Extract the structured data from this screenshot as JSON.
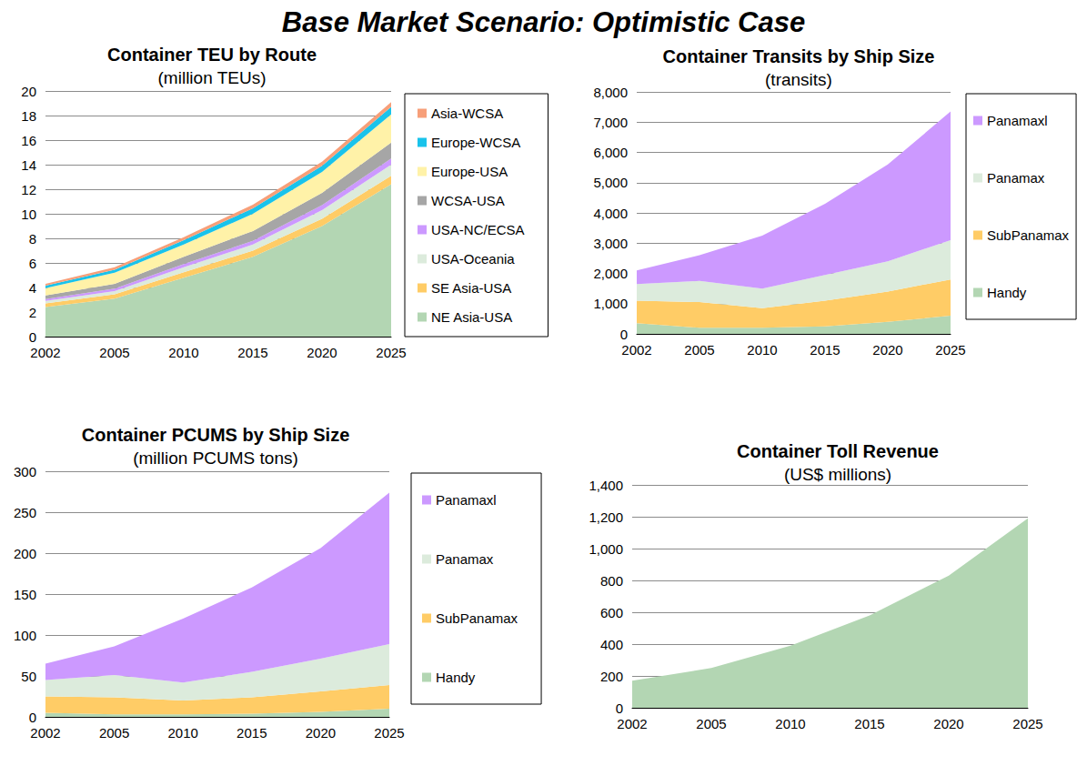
{
  "title": "Base Market Scenario: Optimistic Case",
  "chart_data": [
    {
      "type": "area",
      "title": "Container TEU by Route",
      "subtitle": "(million TEUs)",
      "categories": [
        2002,
        2005,
        2010,
        2015,
        2020,
        2025
      ],
      "stacked": true,
      "grid": true,
      "legend": "right",
      "ylim": [
        0,
        20
      ],
      "yticks": [
        0,
        2,
        4,
        6,
        8,
        10,
        12,
        14,
        16,
        18,
        20
      ],
      "series": [
        {
          "name": "NE Asia-USA",
          "color": "#B3D6B3",
          "values": [
            2.4,
            3.1,
            4.8,
            6.5,
            9.0,
            12.4
          ]
        },
        {
          "name": "SE Asia-USA",
          "color": "#FFCC66",
          "values": [
            0.3,
            0.35,
            0.45,
            0.5,
            0.6,
            0.7
          ]
        },
        {
          "name": "USA-Oceania",
          "color": "#DCEBDC",
          "values": [
            0.2,
            0.25,
            0.4,
            0.5,
            0.7,
            0.9
          ]
        },
        {
          "name": "USA-NC/ECSA",
          "color": "#CC99FF",
          "values": [
            0.15,
            0.2,
            0.25,
            0.3,
            0.4,
            0.5
          ]
        },
        {
          "name": "WCSA-USA",
          "color": "#A6A6A6",
          "values": [
            0.3,
            0.4,
            0.6,
            0.8,
            1.0,
            1.3
          ]
        },
        {
          "name": "Europe-USA",
          "color": "#FFF2A8",
          "values": [
            0.6,
            0.9,
            1.0,
            1.4,
            1.7,
            2.3
          ]
        },
        {
          "name": "Europe-WCSA",
          "color": "#19C3EB",
          "values": [
            0.2,
            0.25,
            0.35,
            0.45,
            0.5,
            0.6
          ]
        },
        {
          "name": "Asia-WCSA",
          "color": "#F79F79",
          "values": [
            0.15,
            0.2,
            0.25,
            0.3,
            0.35,
            0.4
          ]
        }
      ]
    },
    {
      "type": "area",
      "title": "Container Transits by Ship Size",
      "subtitle": "(transits)",
      "categories": [
        2002,
        2005,
        2010,
        2015,
        2020,
        2025
      ],
      "stacked": true,
      "grid": true,
      "legend": "right",
      "ylim": [
        0,
        8000
      ],
      "yticks": [
        0,
        {
          "value": 1000,
          "label": "1,000"
        },
        {
          "value": 2000,
          "label": "2,000"
        },
        {
          "value": 3000,
          "label": "3,000"
        },
        {
          "value": 4000,
          "label": "4,000"
        },
        {
          "value": 5000,
          "label": "5,000"
        },
        {
          "value": 6000,
          "label": "6,000"
        },
        {
          "value": 7000,
          "label": "7,000"
        },
        {
          "value": 8000,
          "label": "8,000"
        }
      ],
      "series": [
        {
          "name": "Handy",
          "color": "#B3D6B3",
          "values": [
            350,
            200,
            200,
            250,
            400,
            600
          ]
        },
        {
          "name": "SubPanamax",
          "color": "#FFCC66",
          "values": [
            750,
            850,
            650,
            850,
            1000,
            1200
          ]
        },
        {
          "name": "Panamax",
          "color": "#DCEBDC",
          "values": [
            550,
            700,
            650,
            850,
            1000,
            1300
          ]
        },
        {
          "name": "Panamaxl",
          "color": "#CC99FF",
          "values": [
            450,
            850,
            1750,
            2350,
            3200,
            4250
          ]
        }
      ]
    },
    {
      "type": "area",
      "title": "Container PCUMS by Ship Size",
      "subtitle": "(million PCUMS tons)",
      "categories": [
        2002,
        2005,
        2010,
        2015,
        2020,
        2025
      ],
      "stacked": true,
      "grid": true,
      "legend": "right",
      "ylim": [
        0,
        300
      ],
      "yticks": [
        0,
        50,
        100,
        150,
        200,
        250,
        300
      ],
      "series": [
        {
          "name": "Handy",
          "color": "#B3D6B3",
          "values": [
            5,
            3,
            3,
            4,
            6,
            10
          ]
        },
        {
          "name": "SubPanamax",
          "color": "#FFCC66",
          "values": [
            20,
            21,
            17,
            20,
            25,
            29
          ]
        },
        {
          "name": "Panamax",
          "color": "#DCEBDC",
          "values": [
            20,
            27,
            22,
            31,
            40,
            50
          ]
        },
        {
          "name": "Panamaxl",
          "color": "#CC99FF",
          "values": [
            20,
            35,
            78,
            103,
            135,
            185
          ]
        }
      ]
    },
    {
      "type": "area",
      "title": "Container Toll Revenue",
      "subtitle": "(US$ millions)",
      "categories": [
        2002,
        2005,
        2010,
        2015,
        2020,
        2025
      ],
      "grid": true,
      "ylim": [
        0,
        1400
      ],
      "yticks": [
        0,
        200,
        400,
        600,
        800,
        {
          "value": 1000,
          "label": "1,000"
        },
        {
          "value": 1200,
          "label": "1,200"
        },
        {
          "value": 1400,
          "label": "1,400"
        }
      ],
      "values": [
        170,
        250,
        390,
        580,
        830,
        1190
      ],
      "color": "#B3D6B3"
    }
  ]
}
